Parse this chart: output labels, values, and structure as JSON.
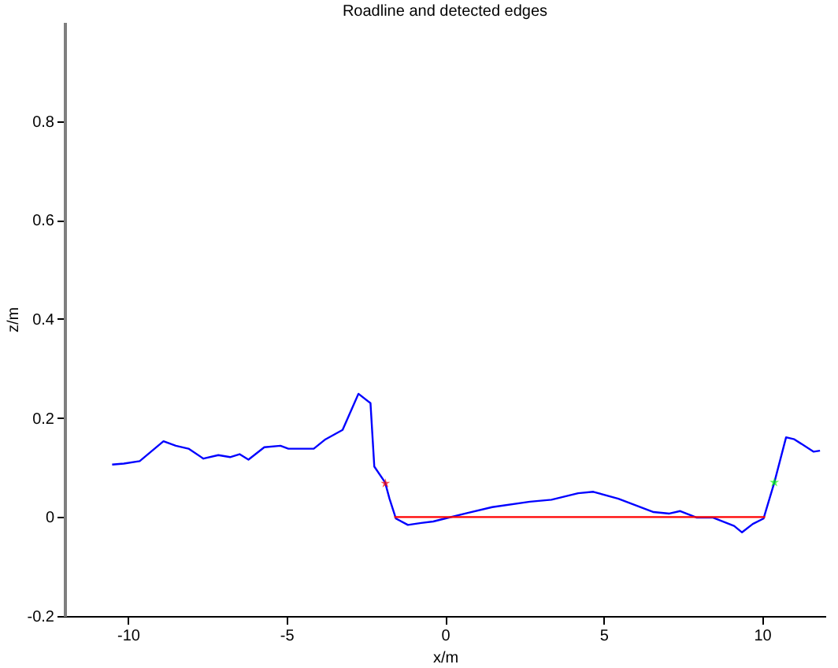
{
  "chart_data": {
    "type": "line",
    "title": "Roadline and detected edges",
    "xlabel": "x/m",
    "ylabel": "z/m",
    "xlim": [
      -12,
      12
    ],
    "xticks": [
      -10,
      -5,
      0,
      5,
      10
    ],
    "ylim": [
      -0.2,
      1
    ],
    "yticks": [
      -0.2,
      0,
      0.2,
      0.4,
      0.6,
      0.8
    ],
    "grid": false,
    "series": [
      {
        "color": "#0000ff",
        "x": [
          -10.5,
          -10.13,
          -9.63,
          -8.88,
          -8.49,
          -8.09,
          -7.62,
          -7.15,
          -6.78,
          -6.48,
          -6.2,
          -5.7,
          -5.19,
          -4.94,
          -4.14,
          -3.77,
          -3.23,
          -2.73,
          -2.35,
          -2.23,
          -1.89,
          -1.75,
          -1.55,
          -1.17,
          -0.75,
          -0.37,
          0.0,
          0.64,
          1.49,
          2.68,
          3.36,
          4.2,
          4.68,
          5.47,
          6.58,
          7.08,
          7.42,
          7.93,
          8.44,
          9.12,
          9.37,
          9.71,
          10.05,
          10.39,
          10.76,
          11.02,
          11.63,
          11.83
        ],
        "values": [
          0.106,
          0.108,
          0.113,
          0.153,
          0.144,
          0.138,
          0.118,
          0.125,
          0.121,
          0.127,
          0.116,
          0.141,
          0.144,
          0.138,
          0.138,
          0.157,
          0.176,
          0.249,
          0.23,
          0.102,
          0.07,
          0.037,
          -0.003,
          -0.016,
          -0.012,
          -0.009,
          -0.003,
          0.007,
          0.02,
          0.031,
          0.035,
          0.048,
          0.051,
          0.037,
          0.01,
          0.007,
          0.012,
          -0.001,
          -0.001,
          -0.018,
          -0.031,
          -0.014,
          -0.003,
          0.07,
          0.161,
          0.157,
          0.132,
          0.134
        ],
        "marker": "none"
      },
      {
        "color": "#ff0000",
        "x": [
          -1.6,
          10.1
        ],
        "values": [
          0,
          0
        ],
        "marker": "none"
      },
      {
        "type": "scatter",
        "color": "#ff0000",
        "x": [
          -1.88
        ],
        "values": [
          0.068
        ],
        "marker": "star"
      },
      {
        "type": "scatter",
        "color": "#00ff00",
        "x": [
          10.39
        ],
        "values": [
          0.07
        ],
        "marker": "star"
      }
    ]
  }
}
